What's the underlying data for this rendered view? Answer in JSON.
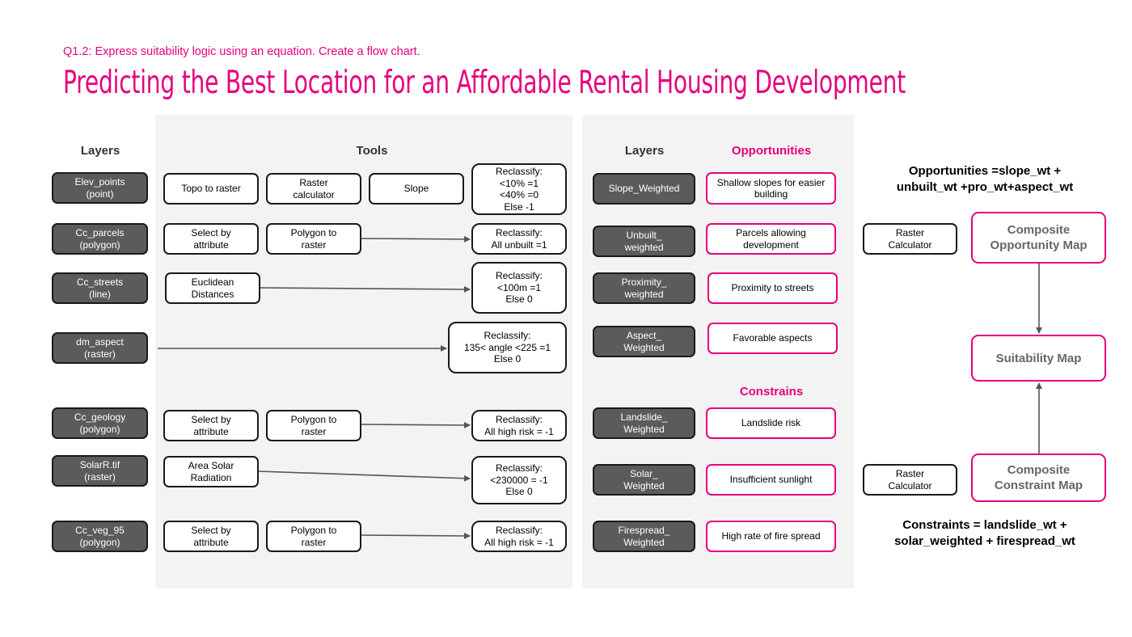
{
  "header": {
    "subtitle": "Q1.2: Express suitability logic using an equation. Create a flow chart.",
    "title": "Predicting the Best Location for an Affordable Rental Housing Development"
  },
  "left_panel": {
    "layers_header": "Layers",
    "tools_header": "Tools",
    "layers": [
      "Elev_points\n(point)",
      "Cc_parcels\n(polygon)",
      "Cc_streets\n(line)",
      "dm_aspect\n(raster)",
      "Cc_geology\n(polygon)",
      "SolarR.tif\n(raster)",
      "Cc_veg_95\n(polygon)"
    ],
    "tools": {
      "topo_to_raster": "Topo to raster",
      "raster_calculator": "Raster\ncalculator",
      "slope": "Slope",
      "select_by_attribute_1": "Select by\nattribute",
      "polygon_to_raster_1": "Polygon to\nraster",
      "euclidean": "Euclidean\nDistances",
      "select_by_attribute_2": "Select by\nattribute",
      "polygon_to_raster_2": "Polygon to\nraster",
      "area_solar": "Area Solar\nRadiation",
      "select_by_attribute_3": "Select by\nattribute",
      "polygon_to_raster_3": "Polygon to\nraster"
    },
    "reclassify": [
      "Reclassify:\n<10% =1\n<40% =0\nElse -1",
      "Reclassify:\nAll unbuilt =1",
      "Reclassify:\n<100m =1\nElse 0",
      "Reclassify:\n135< angle <225 =1\nElse 0",
      "Reclassify:\nAll high risk = -1",
      "Reclassify:\n<230000 = -1\nElse 0",
      "Reclassify:\nAll high risk = -1"
    ]
  },
  "right_panel": {
    "layers_header": "Layers",
    "opportunities_header": "Opportunities",
    "constrains_header": "Constrains",
    "weighted_layers": [
      "Slope_Weighted",
      "Unbuilt_\nweighted",
      "Proximity_\nweighted",
      "Aspect_\nWeighted",
      "Landslide_\nWeighted",
      "Solar_\nWeighted",
      "Firespread_\nWeighted"
    ],
    "opportunities": [
      "Shallow slopes for easier\nbuilding",
      "Parcels allowing\ndevelopment",
      "Proximity to streets",
      "Favorable aspects"
    ],
    "constraints": [
      "Landslide risk",
      "Insufficient sunlight",
      "High rate of fire spread"
    ]
  },
  "outputs": {
    "opportunity_equation": "Opportunities =slope_wt +\nunbuilt_wt +pro_wt+aspect_wt",
    "raster_calculator_1": "Raster\nCalculator",
    "composite_opportunity": "Composite\nOpportunity Map",
    "suitability_map": "Suitability Map",
    "raster_calculator_2": "Raster\nCalculator",
    "composite_constraint": "Composite\nConstraint Map",
    "constraint_equation": "Constraints = landslide_wt +\nsolar_weighted + firespread_wt"
  },
  "colors": {
    "accent": "#e6007e",
    "layer_fill": "#5b5b5b",
    "panel": "#f3f3f3"
  }
}
